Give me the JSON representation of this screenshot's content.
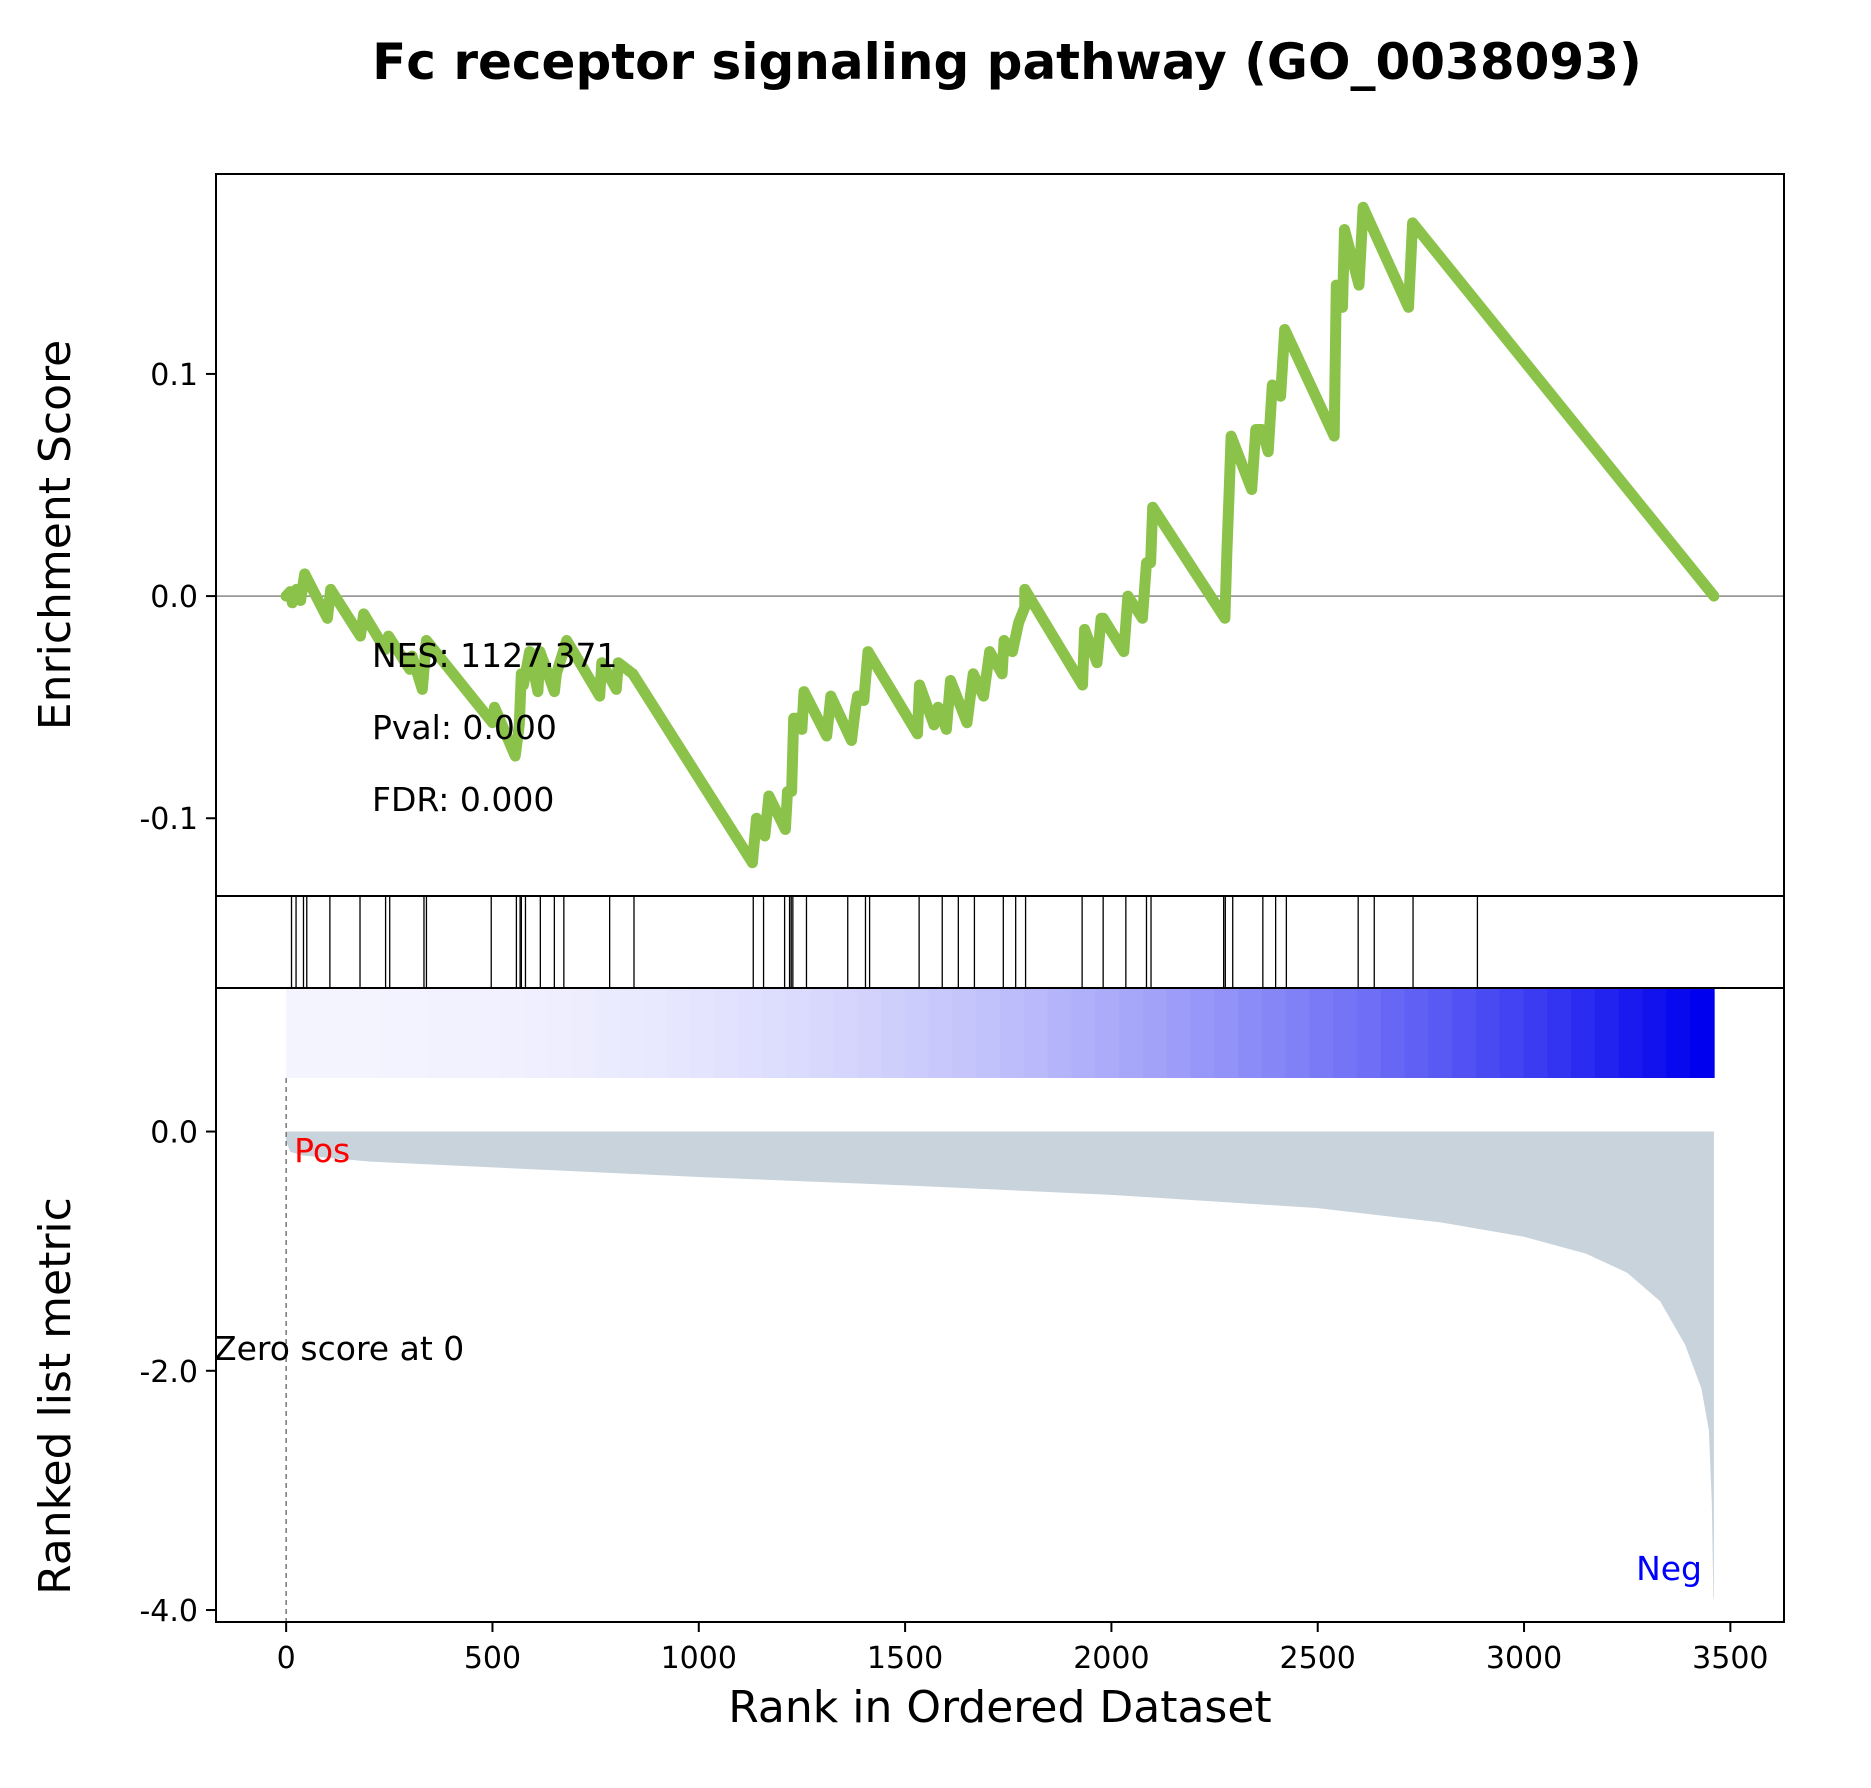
{
  "chart_data": {
    "type": "line",
    "title": "Fc receptor signaling pathway (GO_0038093)",
    "xlabel": "Rank in Ordered Dataset",
    "es_panel": {
      "ylabel": "Enrichment Score",
      "ylim": [
        -0.135,
        0.19
      ],
      "yticks": [
        0.1,
        0.0,
        -0.1
      ],
      "ytick_labels": [
        "0.1",
        "0.0",
        "-0.1"
      ],
      "line_color": "#8bc34a",
      "stats": [
        "NES: 1127.371",
        "Pval: 0.000",
        "FDR: 0.000"
      ],
      "points": [
        [
          0,
          0.0
        ],
        [
          10,
          0.002
        ],
        [
          15,
          -0.003
        ],
        [
          25,
          0.003
        ],
        [
          35,
          -0.002
        ],
        [
          45,
          0.01
        ],
        [
          100,
          -0.01
        ],
        [
          108,
          0.003
        ],
        [
          180,
          -0.018
        ],
        [
          188,
          -0.008
        ],
        [
          240,
          -0.024
        ],
        [
          248,
          -0.018
        ],
        [
          300,
          -0.033
        ],
        [
          305,
          -0.027
        ],
        [
          330,
          -0.042
        ],
        [
          340,
          -0.02
        ],
        [
          500,
          -0.057
        ],
        [
          505,
          -0.05
        ],
        [
          555,
          -0.072
        ],
        [
          565,
          -0.058
        ],
        [
          570,
          -0.035
        ],
        [
          575,
          -0.04
        ],
        [
          590,
          -0.025
        ],
        [
          610,
          -0.043
        ],
        [
          615,
          -0.025
        ],
        [
          650,
          -0.043
        ],
        [
          655,
          -0.035
        ],
        [
          680,
          -0.02
        ],
        [
          760,
          -0.045
        ],
        [
          765,
          -0.03
        ],
        [
          800,
          -0.042
        ],
        [
          805,
          -0.03
        ],
        [
          840,
          -0.035
        ],
        [
          1130,
          -0.12
        ],
        [
          1140,
          -0.1
        ],
        [
          1160,
          -0.108
        ],
        [
          1170,
          -0.09
        ],
        [
          1210,
          -0.105
        ],
        [
          1215,
          -0.088
        ],
        [
          1225,
          -0.088
        ],
        [
          1230,
          -0.055
        ],
        [
          1240,
          -0.055
        ],
        [
          1250,
          -0.06
        ],
        [
          1255,
          -0.043
        ],
        [
          1310,
          -0.063
        ],
        [
          1320,
          -0.045
        ],
        [
          1370,
          -0.065
        ],
        [
          1380,
          -0.05
        ],
        [
          1385,
          -0.045
        ],
        [
          1400,
          -0.047
        ],
        [
          1410,
          -0.025
        ],
        [
          1530,
          -0.062
        ],
        [
          1535,
          -0.04
        ],
        [
          1570,
          -0.058
        ],
        [
          1580,
          -0.05
        ],
        [
          1600,
          -0.06
        ],
        [
          1610,
          -0.038
        ],
        [
          1650,
          -0.057
        ],
        [
          1665,
          -0.035
        ],
        [
          1690,
          -0.045
        ],
        [
          1705,
          -0.025
        ],
        [
          1735,
          -0.035
        ],
        [
          1740,
          -0.02
        ],
        [
          1760,
          -0.025
        ],
        [
          1775,
          -0.012
        ],
        [
          1790,
          -0.005
        ],
        [
          1790,
          0.003
        ],
        [
          1930,
          -0.04
        ],
        [
          1935,
          -0.015
        ],
        [
          1965,
          -0.03
        ],
        [
          1975,
          -0.01
        ],
        [
          1980,
          -0.01
        ],
        [
          2030,
          -0.025
        ],
        [
          2040,
          0.0
        ],
        [
          2075,
          -0.01
        ],
        [
          2085,
          0.015
        ],
        [
          2095,
          0.015
        ],
        [
          2100,
          0.04
        ],
        [
          2275,
          -0.01
        ],
        [
          2280,
          0.02
        ],
        [
          2285,
          0.045
        ],
        [
          2290,
          0.072
        ],
        [
          2340,
          0.048
        ],
        [
          2350,
          0.075
        ],
        [
          2365,
          0.075
        ],
        [
          2380,
          0.065
        ],
        [
          2390,
          0.095
        ],
        [
          2410,
          0.09
        ],
        [
          2420,
          0.12
        ],
        [
          2540,
          0.072
        ],
        [
          2545,
          0.14
        ],
        [
          2560,
          0.13
        ],
        [
          2565,
          0.165
        ],
        [
          2600,
          0.14
        ],
        [
          2610,
          0.175
        ],
        [
          2720,
          0.13
        ],
        [
          2730,
          0.168
        ],
        [
          3460,
          0.0
        ]
      ]
    },
    "hits": [
      13,
      24,
      42,
      50,
      106,
      179,
      241,
      251,
      334,
      340,
      497,
      558,
      567,
      570,
      580,
      616,
      650,
      673,
      784,
      843,
      1132,
      1157,
      1208,
      1220,
      1224,
      1228,
      1261,
      1361,
      1404,
      1414,
      1534,
      1590,
      1629,
      1668,
      1738,
      1768,
      1792,
      1929,
      1980,
      2035,
      2085,
      2096,
      2272,
      2276,
      2294,
      2367,
      2398,
      2424,
      2598,
      2637,
      2731,
      2887
    ],
    "colorbar": {
      "start_color": "#f4f4ff",
      "end_color": "#0000ee"
    },
    "metric_panel": {
      "ylabel": "Ranked list metric",
      "ylim": [
        -4.1,
        1.2
      ],
      "yticks": [
        0.0,
        -2.0,
        -4.0
      ],
      "ytick_labels": [
        "0.0",
        "-2.0",
        "-4.0"
      ],
      "fill_color": "#c8d3dc",
      "pos_label": "Pos",
      "pos_color": "#ff0000",
      "neg_label": "Neg",
      "neg_color": "#0000ff",
      "zero_label": "Zero score at 0",
      "metric_points": [
        [
          0,
          -0.08
        ],
        [
          10,
          -0.17
        ],
        [
          40,
          -0.2
        ],
        [
          200,
          -0.25
        ],
        [
          500,
          -0.3
        ],
        [
          1000,
          -0.38
        ],
        [
          1500,
          -0.45
        ],
        [
          2000,
          -0.53
        ],
        [
          2500,
          -0.64
        ],
        [
          2800,
          -0.76
        ],
        [
          3000,
          -0.88
        ],
        [
          3150,
          -1.02
        ],
        [
          3250,
          -1.18
        ],
        [
          3330,
          -1.42
        ],
        [
          3390,
          -1.78
        ],
        [
          3430,
          -2.15
        ],
        [
          3448,
          -2.5
        ],
        [
          3455,
          -3.1
        ],
        [
          3459,
          -3.9
        ],
        [
          3460,
          -3.9
        ]
      ]
    },
    "xlim": [
      -170,
      3630
    ],
    "xticks": [
      0,
      500,
      1000,
      1500,
      2000,
      2500,
      3000,
      3500
    ],
    "xtick_labels": [
      "0",
      "500",
      "1000",
      "1500",
      "2000",
      "2500",
      "3000",
      "3500"
    ]
  }
}
